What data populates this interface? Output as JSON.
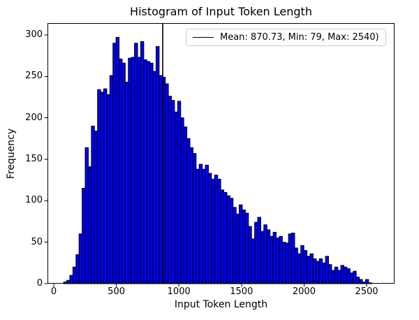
{
  "chart_data": {
    "type": "bar",
    "title": "Histogram of Input Token Length",
    "xlabel": "Input Token Length",
    "ylabel": "Frequency",
    "bin_start": 79,
    "bin_width": 24.61,
    "values": [
      2,
      4,
      10,
      20,
      35,
      60,
      115,
      164,
      141,
      190,
      184,
      234,
      231,
      235,
      228,
      251,
      290,
      297,
      271,
      266,
      243,
      272,
      273,
      290,
      273,
      292,
      270,
      268,
      266,
      256,
      286,
      251,
      249,
      241,
      226,
      221,
      207,
      220,
      200,
      189,
      175,
      164,
      157,
      138,
      144,
      138,
      143,
      133,
      126,
      131,
      126,
      113,
      110,
      106,
      103,
      92,
      84,
      95,
      89,
      85,
      69,
      54,
      74,
      80,
      63,
      71,
      65,
      57,
      62,
      55,
      57,
      50,
      49,
      60,
      61,
      43,
      36,
      46,
      40,
      33,
      36,
      30,
      27,
      30,
      25,
      33,
      23,
      16,
      20,
      16,
      22,
      20,
      18,
      13,
      15,
      8,
      5,
      2,
      5,
      1
    ],
    "xticks": [
      0,
      500,
      1000,
      1500,
      2000,
      2500
    ],
    "yticks": [
      0,
      50,
      100,
      150,
      200,
      250,
      300
    ],
    "xlim": [
      -50.2,
      2723
    ],
    "ylim": [
      0,
      314.3
    ],
    "grid": false,
    "mean_line": {
      "value": 870.73,
      "color": "#000000"
    },
    "legend": {
      "position": "upper right",
      "entries": [
        {
          "label": "Mean: 870.73, Min: 79, Max: 2540)",
          "type": "line",
          "color": "#000000"
        }
      ]
    },
    "stats": {
      "mean": "870.73",
      "min": "79",
      "max": "2540"
    },
    "colors": {
      "bar_fill": "#0000f5",
      "bar_edge": "#000000",
      "axis": "#000000",
      "background": "#ffffff",
      "legend_border": "#cccccc"
    }
  }
}
